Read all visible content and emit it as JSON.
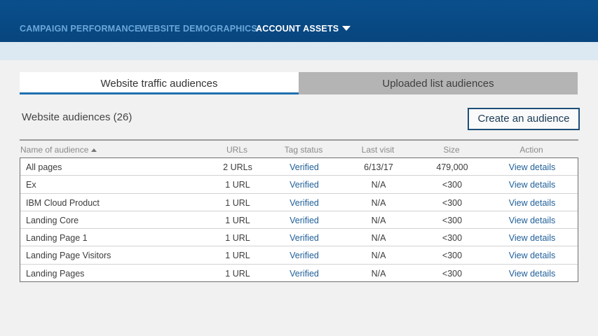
{
  "nav": {
    "items": [
      {
        "label": "CAMPAIGN PERFORMANCE"
      },
      {
        "label": "WEBSITE DEMOGRAPHICS"
      },
      {
        "label": "ACCOUNT ASSETS"
      }
    ]
  },
  "tabs": [
    {
      "label": "Website traffic audiences"
    },
    {
      "label": "Uploaded list audiences"
    }
  ],
  "section": {
    "title": "Website audiences (26)",
    "create_label": "Create an audience"
  },
  "table": {
    "headers": {
      "name": "Name of audience",
      "urls": "URLs",
      "tag_status": "Tag status",
      "last_visit": "Last visit",
      "size": "Size",
      "action": "Action"
    },
    "rows": [
      {
        "name": "All pages",
        "urls": "2 URLs",
        "tag_status": "Verified",
        "last_visit": "6/13/17",
        "size": "479,000",
        "action": "View details"
      },
      {
        "name": "Ex",
        "urls": "1 URL",
        "tag_status": "Verified",
        "last_visit": "N/A",
        "size": "<300",
        "action": "View details"
      },
      {
        "name": "IBM Cloud Product",
        "urls": "1 URL",
        "tag_status": "Verified",
        "last_visit": "N/A",
        "size": "<300",
        "action": "View details"
      },
      {
        "name": "Landing Core",
        "urls": "1 URL",
        "tag_status": "Verified",
        "last_visit": "N/A",
        "size": "<300",
        "action": "View details"
      },
      {
        "name": "Landing Page 1",
        "urls": "1 URL",
        "tag_status": "Verified",
        "last_visit": "N/A",
        "size": "<300",
        "action": "View details"
      },
      {
        "name": "Landing Page Visitors",
        "urls": "1 URL",
        "tag_status": "Verified",
        "last_visit": "N/A",
        "size": "<300",
        "action": "View details"
      },
      {
        "name": "Landing Pages",
        "urls": "1 URL",
        "tag_status": "Verified",
        "last_visit": "N/A",
        "size": "<300",
        "action": "View details"
      }
    ]
  },
  "colors": {
    "nav_bg": "#07457e",
    "nav_inactive": "#6aa6d8",
    "link": "#1f5f99",
    "tab_underline": "#1f70b0"
  }
}
